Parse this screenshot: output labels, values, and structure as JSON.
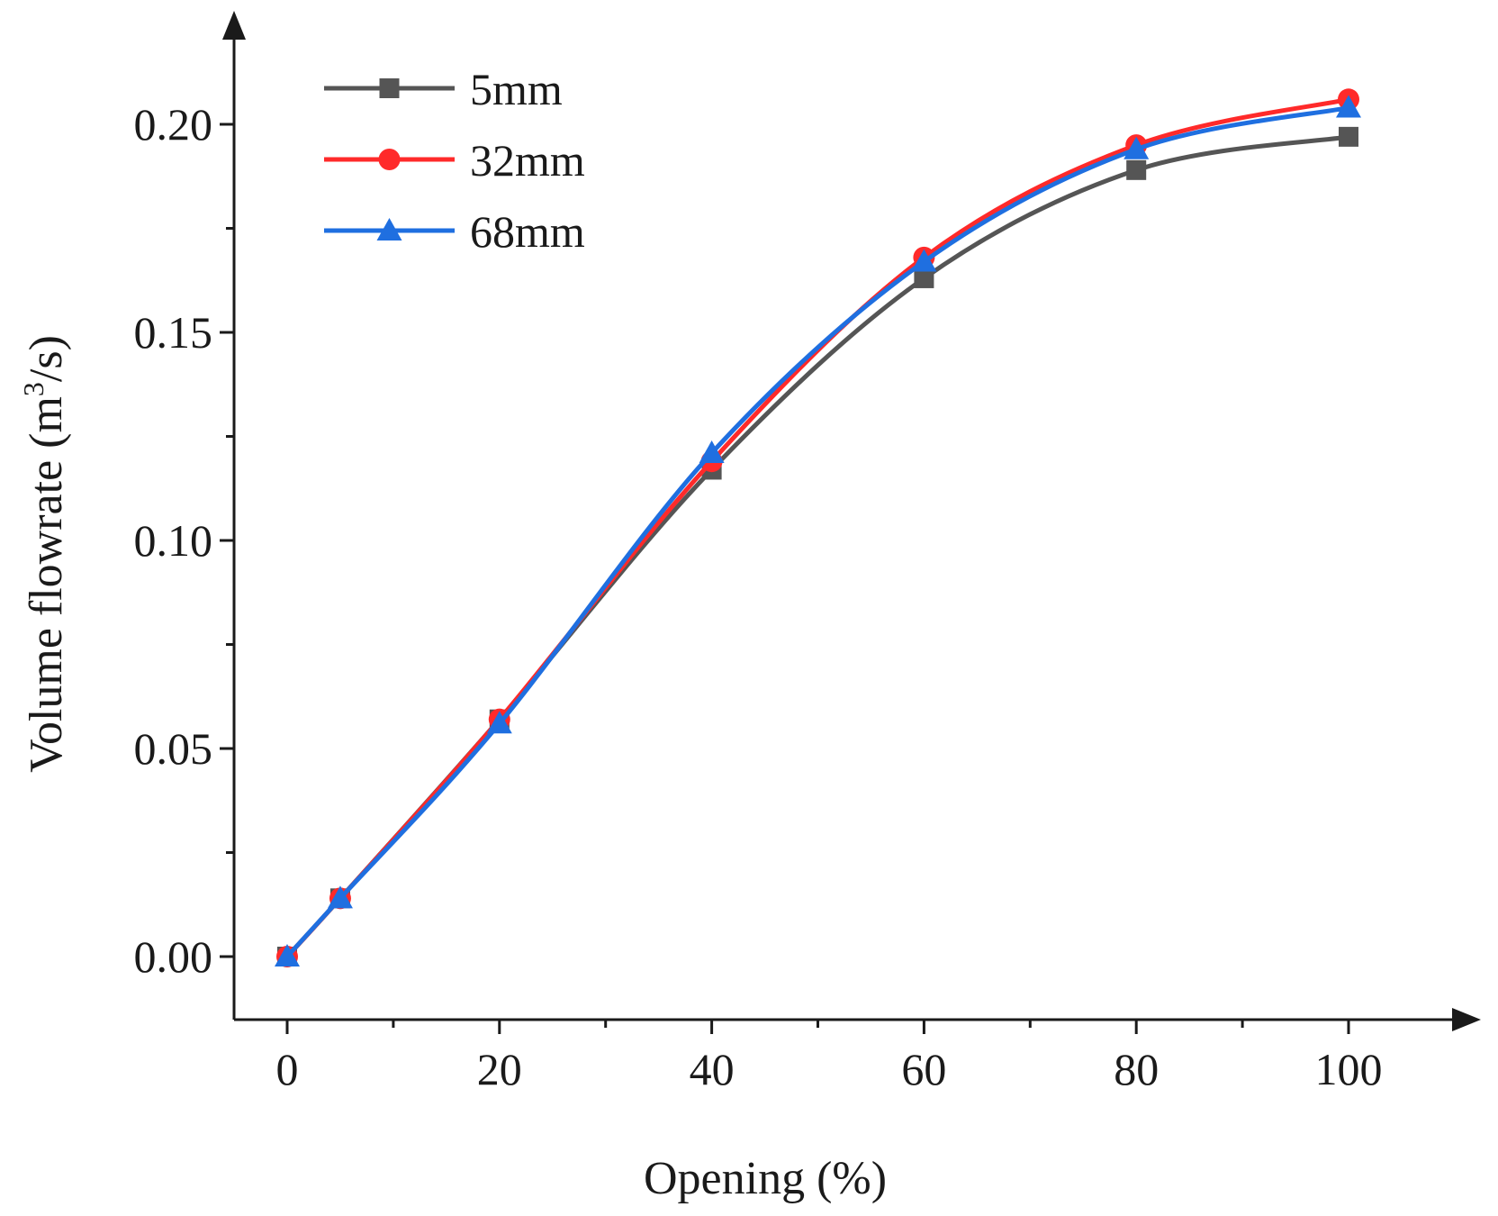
{
  "chart_data": {
    "type": "line",
    "title": "",
    "xlabel": "Opening (%)",
    "ylabel_prefix": "Volume flowrate (m",
    "ylabel_sup": "3",
    "ylabel_suffix": "/s)",
    "x": [
      0,
      5,
      20,
      40,
      60,
      80,
      100
    ],
    "xlim": [
      -5,
      110
    ],
    "ylim": [
      -0.015,
      0.225
    ],
    "xticks": [
      0,
      20,
      40,
      60,
      80,
      100
    ],
    "xtick_labels": [
      "0",
      "20",
      "40",
      "60",
      "80",
      "100"
    ],
    "xminor": [
      10,
      30,
      50,
      70,
      90
    ],
    "yticks": [
      0.0,
      0.05,
      0.1,
      0.15,
      0.2
    ],
    "ytick_labels": [
      "0.00",
      "0.05",
      "0.10",
      "0.15",
      "0.20"
    ],
    "yminor": [
      0.025,
      0.075,
      0.125,
      0.175
    ],
    "grid": false,
    "legend_position": "top-left",
    "series": [
      {
        "name": "5mm",
        "values": [
          0.0,
          0.014,
          0.057,
          0.117,
          0.163,
          0.189,
          0.197
        ],
        "color": "#555555",
        "marker": "square"
      },
      {
        "name": "32mm",
        "values": [
          0.0,
          0.014,
          0.057,
          0.119,
          0.168,
          0.195,
          0.206
        ],
        "color": "#ff2a2a",
        "marker": "circle"
      },
      {
        "name": "68mm",
        "values": [
          0.0,
          0.014,
          0.056,
          0.121,
          0.167,
          0.194,
          0.204
        ],
        "color": "#1f6fe0",
        "marker": "triangle"
      }
    ]
  }
}
